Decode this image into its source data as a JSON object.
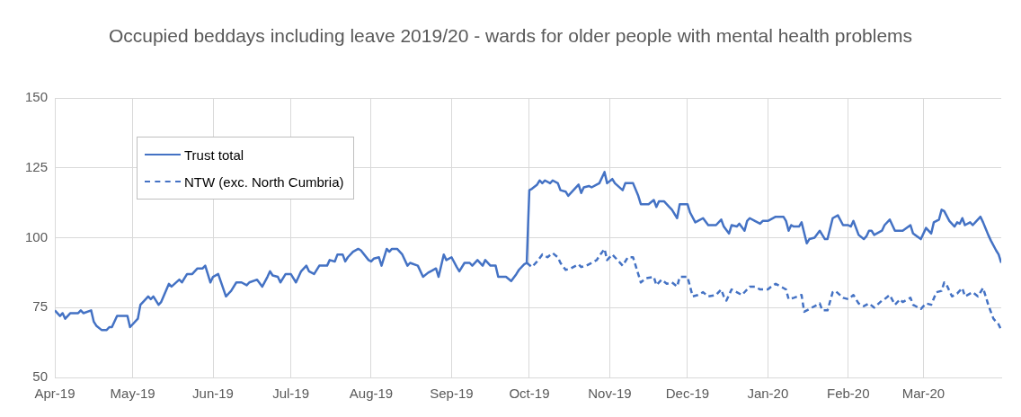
{
  "chart_data": {
    "type": "line",
    "title": "Occupied beddays including leave 2019/20 - wards for older people with mental health problems",
    "xlim": [
      "2019-04-01",
      "2020-03-31"
    ],
    "xticks": [
      {
        "value": "2019-04-01",
        "label": "Apr-19"
      },
      {
        "value": "2019-05-01",
        "label": "May-19"
      },
      {
        "value": "2019-06-01",
        "label": "Jun-19"
      },
      {
        "value": "2019-07-01",
        "label": "Jul-19"
      },
      {
        "value": "2019-08-01",
        "label": "Aug-19"
      },
      {
        "value": "2019-09-01",
        "label": "Sep-19"
      },
      {
        "value": "2019-10-01",
        "label": "Oct-19"
      },
      {
        "value": "2019-11-01",
        "label": "Nov-19"
      },
      {
        "value": "2019-12-01",
        "label": "Dec-19"
      },
      {
        "value": "2020-01-01",
        "label": "Jan-20"
      },
      {
        "value": "2020-02-01",
        "label": "Feb-20"
      },
      {
        "value": "2020-03-01",
        "label": "Mar-20"
      }
    ],
    "ylim": [
      50,
      150
    ],
    "yticks": [
      50,
      75,
      100,
      125,
      150
    ],
    "grid": true,
    "legend": "top left",
    "marker": "none",
    "series": [
      {
        "name": "Trust total",
        "color": "#4472c4",
        "line_style": "solid",
        "x": [
          "2019-04-01",
          "2019-04-03",
          "2019-04-04",
          "2019-04-05",
          "2019-04-07",
          "2019-04-10",
          "2019-04-11",
          "2019-04-12",
          "2019-04-15",
          "2019-04-16",
          "2019-04-17",
          "2019-04-19",
          "2019-04-21",
          "2019-04-22",
          "2019-04-23",
          "2019-04-24",
          "2019-04-25",
          "2019-04-29",
          "2019-04-30",
          "2019-05-03",
          "2019-05-04",
          "2019-05-05",
          "2019-05-07",
          "2019-05-08",
          "2019-05-09",
          "2019-05-11",
          "2019-05-12",
          "2019-05-15",
          "2019-05-16",
          "2019-05-19",
          "2019-05-20",
          "2019-05-22",
          "2019-05-24",
          "2019-05-26",
          "2019-05-28",
          "2019-05-29",
          "2019-05-31",
          "2019-06-01",
          "2019-06-03",
          "2019-06-06",
          "2019-06-08",
          "2019-06-10",
          "2019-06-12",
          "2019-06-14",
          "2019-06-15",
          "2019-06-18",
          "2019-06-20",
          "2019-06-22",
          "2019-06-23",
          "2019-06-24",
          "2019-06-26",
          "2019-06-27",
          "2019-06-29",
          "2019-07-01",
          "2019-07-03",
          "2019-07-05",
          "2019-07-07",
          "2019-07-08",
          "2019-07-10",
          "2019-07-12",
          "2019-07-15",
          "2019-07-16",
          "2019-07-18",
          "2019-07-19",
          "2019-07-21",
          "2019-07-22",
          "2019-07-23",
          "2019-07-25",
          "2019-07-27",
          "2019-07-28",
          "2019-07-31",
          "2019-08-01",
          "2019-08-02",
          "2019-08-04",
          "2019-08-05",
          "2019-08-07",
          "2019-08-08",
          "2019-08-09",
          "2019-08-11",
          "2019-08-13",
          "2019-08-15",
          "2019-08-16",
          "2019-08-19",
          "2019-08-21",
          "2019-08-23",
          "2019-08-24",
          "2019-08-26",
          "2019-08-27",
          "2019-08-29",
          "2019-08-30",
          "2019-09-01",
          "2019-09-03",
          "2019-09-04",
          "2019-09-06",
          "2019-09-08",
          "2019-09-09",
          "2019-09-11",
          "2019-09-13",
          "2019-09-14",
          "2019-09-16",
          "2019-09-18",
          "2019-09-19",
          "2019-09-20",
          "2019-09-22",
          "2019-09-24",
          "2019-09-26",
          "2019-09-27",
          "2019-09-29",
          "2019-09-30",
          "2019-10-01",
          "2019-10-02",
          "2019-10-04",
          "2019-10-05",
          "2019-10-06",
          "2019-10-07",
          "2019-10-09",
          "2019-10-10",
          "2019-10-12",
          "2019-10-13",
          "2019-10-15",
          "2019-10-16",
          "2019-10-18",
          "2019-10-20",
          "2019-10-21",
          "2019-10-22",
          "2019-10-24",
          "2019-10-25",
          "2019-10-27",
          "2019-10-28",
          "2019-10-30",
          "2019-10-31",
          "2019-11-02",
          "2019-11-03",
          "2019-11-06",
          "2019-11-07",
          "2019-11-10",
          "2019-11-12",
          "2019-11-13",
          "2019-11-16",
          "2019-11-18",
          "2019-11-19",
          "2019-11-20",
          "2019-11-22",
          "2019-11-24",
          "2019-11-25",
          "2019-11-27",
          "2019-11-28",
          "2019-12-01",
          "2019-12-02",
          "2019-12-04",
          "2019-12-05",
          "2019-12-07",
          "2019-12-09",
          "2019-12-12",
          "2019-12-14",
          "2019-12-15",
          "2019-12-17",
          "2019-12-18",
          "2019-12-20",
          "2019-12-21",
          "2019-12-23",
          "2019-12-24",
          "2019-12-25",
          "2019-12-27",
          "2019-12-29",
          "2019-12-30",
          "2020-01-01",
          "2020-01-04",
          "2020-01-07",
          "2020-01-08",
          "2020-01-09",
          "2020-01-10",
          "2020-01-11",
          "2020-01-13",
          "2020-01-14",
          "2020-01-16",
          "2020-01-17",
          "2020-01-19",
          "2020-01-21",
          "2020-01-22",
          "2020-01-23",
          "2020-01-24",
          "2020-01-26",
          "2020-01-28",
          "2020-01-30",
          "2020-02-01",
          "2020-02-02",
          "2020-02-03",
          "2020-02-05",
          "2020-02-07",
          "2020-02-08",
          "2020-02-09",
          "2020-02-10",
          "2020-02-11",
          "2020-02-14",
          "2020-02-15",
          "2020-02-17",
          "2020-02-19",
          "2020-02-22",
          "2020-02-25",
          "2020-02-26",
          "2020-02-29",
          "2020-03-02",
          "2020-03-04",
          "2020-03-05",
          "2020-03-07",
          "2020-03-08",
          "2020-03-09",
          "2020-03-11",
          "2020-03-13",
          "2020-03-14",
          "2020-03-15",
          "2020-03-16",
          "2020-03-17",
          "2020-03-19",
          "2020-03-20",
          "2020-03-21",
          "2020-03-23",
          "2020-03-24",
          "2020-03-26",
          "2020-03-27",
          "2020-03-29",
          "2020-03-30",
          "2020-03-31"
        ],
        "values": [
          74,
          72,
          73,
          71,
          73,
          73,
          74,
          73,
          74,
          70,
          68.5,
          67,
          67,
          68,
          68,
          70,
          72,
          72,
          68,
          71,
          76,
          77,
          79,
          78,
          79,
          76,
          77,
          83.5,
          82.5,
          85,
          84,
          87,
          87,
          89,
          89,
          90,
          84,
          86,
          87,
          79,
          81,
          84,
          84,
          83,
          84,
          85,
          82.5,
          86,
          88,
          86.5,
          86,
          84,
          87,
          87,
          84,
          88,
          90,
          88,
          87,
          90,
          90,
          92,
          91.5,
          94,
          94,
          91.5,
          93,
          95,
          96,
          95.5,
          92,
          91.5,
          92.5,
          93,
          90,
          96,
          95,
          96,
          96,
          94,
          90,
          91,
          90,
          86,
          87.5,
          88,
          89,
          86,
          94,
          92,
          93,
          89.5,
          88,
          91,
          91,
          90,
          92,
          90,
          92,
          90,
          90,
          86,
          86,
          86,
          84.5,
          87,
          88.5,
          90.5,
          91,
          117,
          117.5,
          119,
          120.5,
          119.5,
          120.5,
          119.5,
          120.5,
          119.5,
          117,
          116.5,
          115,
          117,
          119,
          116,
          118,
          118.5,
          118,
          119,
          119.5,
          123.5,
          119.5,
          121,
          119.5,
          117,
          119.5,
          119.5,
          115,
          112,
          112,
          113.5,
          111,
          113,
          113,
          111,
          110,
          107,
          112,
          112,
          109,
          105.5,
          106,
          107,
          104.5,
          104.5,
          106.5,
          104,
          101.5,
          104.5,
          104,
          105,
          102.5,
          106,
          107,
          106,
          105,
          106,
          106,
          107.5,
          107.5,
          106,
          102.5,
          104.5,
          104,
          104,
          105.5,
          98,
          99.5,
          100,
          102.5,
          101,
          99.5,
          99.5,
          107,
          108,
          104.5,
          104.5,
          104,
          106,
          101,
          99.5,
          100.5,
          102.5,
          102.5,
          101,
          102.5,
          104.5,
          106.5,
          102.5,
          102.5,
          104.5,
          101.5,
          99.5,
          103.5,
          101.5,
          105.5,
          106.5,
          110,
          109.5,
          106,
          104,
          105.5,
          105,
          107,
          104.5,
          105.5,
          104.5,
          105.5,
          107.5,
          105.5,
          101,
          99,
          95.5,
          94,
          91
        ]
      },
      {
        "name": "NTW (exc. North Cumbria)",
        "color": "#4472c4",
        "line_style": "dashed",
        "x": [
          "2019-09-30",
          "2019-10-02",
          "2019-10-04",
          "2019-10-06",
          "2019-10-08",
          "2019-10-10",
          "2019-10-12",
          "2019-10-13",
          "2019-10-15",
          "2019-10-17",
          "2019-10-20",
          "2019-10-21",
          "2019-10-23",
          "2019-10-25",
          "2019-10-27",
          "2019-10-28",
          "2019-10-30",
          "2019-10-31",
          "2019-11-02",
          "2019-11-04",
          "2019-11-06",
          "2019-11-08",
          "2019-11-10",
          "2019-11-12",
          "2019-11-13",
          "2019-11-15",
          "2019-11-18",
          "2019-11-19",
          "2019-11-21",
          "2019-11-23",
          "2019-11-25",
          "2019-11-27",
          "2019-11-28",
          "2019-12-01",
          "2019-12-03",
          "2019-12-05",
          "2019-12-07",
          "2019-12-09",
          "2019-12-12",
          "2019-12-14",
          "2019-12-15",
          "2019-12-16",
          "2019-12-18",
          "2019-12-20",
          "2019-12-22",
          "2019-12-24",
          "2019-12-25",
          "2019-12-27",
          "2019-12-29",
          "2020-01-01",
          "2020-01-03",
          "2020-01-04",
          "2020-01-07",
          "2020-01-08",
          "2020-01-09",
          "2020-01-11",
          "2020-01-14",
          "2020-01-15",
          "2020-01-18",
          "2020-01-21",
          "2020-01-22",
          "2020-01-24",
          "2020-01-26",
          "2020-01-27",
          "2020-01-30",
          "2020-02-01",
          "2020-02-03",
          "2020-02-05",
          "2020-02-07",
          "2020-02-09",
          "2020-02-11",
          "2020-02-14",
          "2020-02-15",
          "2020-02-17",
          "2020-02-19",
          "2020-02-21",
          "2020-02-22",
          "2020-02-25",
          "2020-02-26",
          "2020-02-29",
          "2020-03-02",
          "2020-03-04",
          "2020-03-06",
          "2020-03-08",
          "2020-03-09",
          "2020-03-10",
          "2020-03-12",
          "2020-03-14",
          "2020-03-16",
          "2020-03-17",
          "2020-03-20",
          "2020-03-22",
          "2020-03-24",
          "2020-03-26",
          "2020-03-28",
          "2020-03-30",
          "2020-03-31"
        ],
        "values": [
          91,
          89.5,
          91.5,
          94,
          93,
          94.5,
          93,
          91,
          88.5,
          89,
          90.5,
          89.5,
          90,
          91,
          92,
          93.5,
          96,
          92,
          94,
          92,
          90,
          93,
          93,
          87,
          84,
          85.5,
          86,
          83,
          85,
          83.5,
          84,
          82.5,
          86,
          86,
          79,
          79.5,
          80.5,
          79,
          79.5,
          81.5,
          79,
          77.5,
          81.5,
          80.5,
          79.5,
          81.5,
          82.5,
          82.5,
          81.5,
          81.5,
          83,
          83.5,
          82,
          81.5,
          78,
          78.5,
          79.5,
          73.5,
          75,
          76.5,
          74,
          74,
          80.5,
          81,
          78.5,
          78,
          79.5,
          76.5,
          75.5,
          76.5,
          75,
          77.5,
          78,
          79.5,
          76,
          78,
          77,
          78.5,
          76,
          74.5,
          76.5,
          76,
          80.5,
          81,
          84,
          83,
          79,
          80,
          82,
          79,
          80.5,
          79,
          82,
          76,
          71,
          69,
          67
        ]
      }
    ]
  }
}
